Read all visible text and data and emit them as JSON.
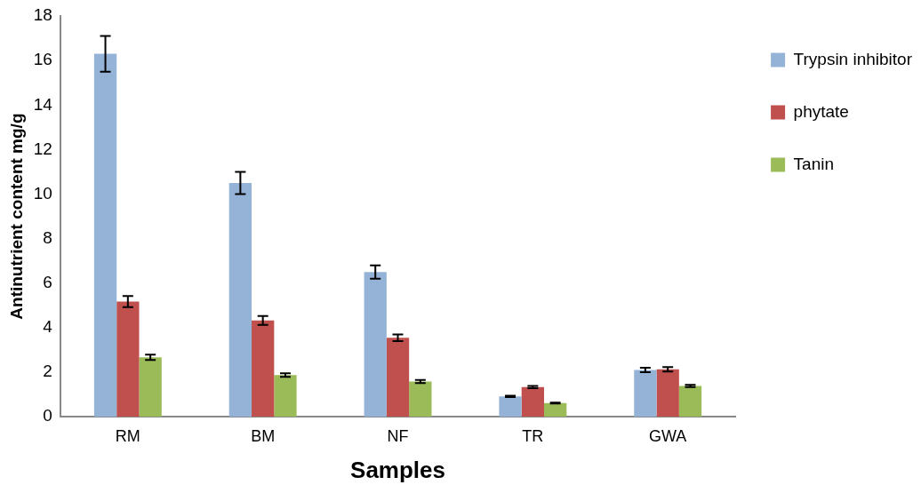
{
  "chart_data": {
    "type": "bar",
    "xlabel": "Samples",
    "ylabel": "Antinutrient content mg/g",
    "categories": [
      "RM",
      "BM",
      "NF",
      "TR",
      "GWA"
    ],
    "series": [
      {
        "name": "Trypsin inhibitor",
        "color": "#95b3d7",
        "values": [
          16.3,
          10.5,
          6.5,
          0.92,
          2.1
        ],
        "errors": [
          0.8,
          0.5,
          0.3,
          0.03,
          0.1
        ]
      },
      {
        "name": "phytate",
        "color": "#c0504d",
        "values": [
          5.17,
          4.33,
          3.55,
          1.33,
          2.13
        ],
        "errors": [
          0.25,
          0.2,
          0.15,
          0.05,
          0.1
        ]
      },
      {
        "name": "Tanin",
        "color": "#9bbb59",
        "values": [
          2.67,
          1.87,
          1.58,
          0.62,
          1.38
        ],
        "errors": [
          0.12,
          0.08,
          0.07,
          0.02,
          0.05
        ]
      }
    ],
    "ylim": [
      0,
      18
    ],
    "yticks": [
      0,
      2,
      4,
      6,
      8,
      10,
      12,
      14,
      16,
      18
    ],
    "grid": false,
    "legend": "right"
  }
}
